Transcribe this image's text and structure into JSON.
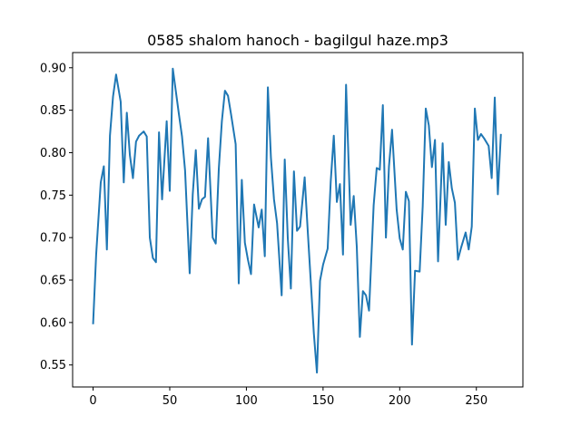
{
  "chart_data": {
    "type": "line",
    "title": "0585 shalom hanoch - bagilgul haze.mp3",
    "xlabel": "",
    "ylabel": "",
    "xlim": [
      -13.35,
      280.35
    ],
    "ylim": [
      0.5241,
      0.9179
    ],
    "xticks": [
      0,
      50,
      100,
      150,
      200,
      250
    ],
    "yticks": [
      0.55,
      0.6,
      0.65,
      0.7,
      0.75,
      0.8,
      0.85,
      0.9
    ],
    "ytick_labels": [
      "0.55",
      "0.60",
      "0.65",
      "0.70",
      "0.75",
      "0.80",
      "0.85",
      "0.90"
    ],
    "grid": false,
    "line_color": "#1f77b4",
    "series": [
      {
        "x": [
          0,
          2,
          5,
          7,
          9,
          11,
          13,
          15,
          18,
          20,
          22,
          24,
          26,
          28,
          30,
          33,
          35,
          37,
          39,
          41,
          43,
          45,
          48,
          50,
          52,
          54,
          56,
          58,
          60,
          63,
          65,
          67,
          69,
          71,
          73,
          75,
          78,
          80,
          82,
          84,
          86,
          88,
          90,
          93,
          95,
          97,
          99,
          101,
          103,
          105,
          108,
          110,
          112,
          114,
          116,
          118,
          120,
          123,
          125,
          127,
          129,
          131,
          133,
          135,
          138,
          140,
          142,
          144,
          146,
          148,
          150,
          153,
          155,
          157,
          159,
          161,
          163,
          165,
          168,
          170,
          172,
          174,
          176,
          178,
          180,
          183,
          185,
          187,
          189,
          191,
          193,
          195,
          198,
          200,
          202,
          204,
          206,
          208,
          210,
          213,
          215,
          217,
          219,
          221,
          223,
          225,
          228,
          230,
          232,
          234,
          236,
          238,
          240,
          243,
          245,
          247,
          249,
          251,
          253,
          255,
          258,
          260,
          262,
          264,
          266
        ],
        "y": [
          0.598,
          0.68,
          0.765,
          0.784,
          0.686,
          0.82,
          0.866,
          0.892,
          0.86,
          0.765,
          0.847,
          0.797,
          0.77,
          0.813,
          0.82,
          0.825,
          0.819,
          0.7,
          0.676,
          0.671,
          0.824,
          0.745,
          0.837,
          0.755,
          0.899,
          0.872,
          0.845,
          0.819,
          0.779,
          0.658,
          0.751,
          0.803,
          0.734,
          0.745,
          0.748,
          0.817,
          0.7,
          0.693,
          0.781,
          0.837,
          0.873,
          0.867,
          0.845,
          0.81,
          0.646,
          0.768,
          0.694,
          0.674,
          0.657,
          0.739,
          0.712,
          0.733,
          0.678,
          0.877,
          0.794,
          0.745,
          0.717,
          0.632,
          0.792,
          0.699,
          0.64,
          0.778,
          0.708,
          0.713,
          0.771,
          0.708,
          0.648,
          0.587,
          0.541,
          0.649,
          0.668,
          0.687,
          0.766,
          0.82,
          0.742,
          0.763,
          0.68,
          0.88,
          0.715,
          0.749,
          0.689,
          0.583,
          0.637,
          0.632,
          0.614,
          0.738,
          0.782,
          0.78,
          0.856,
          0.7,
          0.784,
          0.827,
          0.733,
          0.699,
          0.686,
          0.754,
          0.743,
          0.574,
          0.661,
          0.66,
          0.737,
          0.852,
          0.832,
          0.783,
          0.815,
          0.672,
          0.811,
          0.715,
          0.789,
          0.758,
          0.741,
          0.674,
          0.688,
          0.706,
          0.686,
          0.713,
          0.852,
          0.815,
          0.822,
          0.817,
          0.808,
          0.77,
          0.865,
          0.751,
          0.822
        ]
      }
    ]
  }
}
